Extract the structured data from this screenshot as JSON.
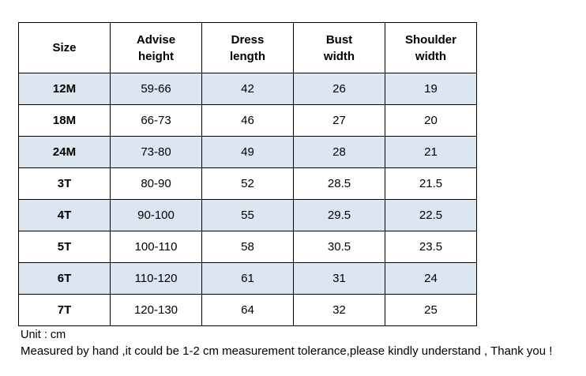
{
  "table": {
    "headers": [
      [
        "Size"
      ],
      [
        "Advise",
        "height"
      ],
      [
        "Dress",
        "length"
      ],
      [
        "Bust",
        "width"
      ],
      [
        "Shoulder",
        "width"
      ]
    ],
    "rows": [
      [
        "12M",
        "59-66",
        "42",
        "26",
        "19"
      ],
      [
        "18M",
        "66-73",
        "46",
        "27",
        "20"
      ],
      [
        "24M",
        "73-80",
        "49",
        "28",
        "21"
      ],
      [
        "3T",
        "80-90",
        "52",
        "28.5",
        "21.5"
      ],
      [
        "4T",
        "90-100",
        "55",
        "29.5",
        "22.5"
      ],
      [
        "5T",
        "100-110",
        "58",
        "30.5",
        "23.5"
      ],
      [
        "6T",
        "110-120",
        "61",
        "31",
        "24"
      ],
      [
        "7T",
        "120-130",
        "64",
        "32",
        "25"
      ]
    ],
    "shaded_row_color": "#dce6f1",
    "shaded_rows": [
      0,
      2,
      4,
      6
    ]
  },
  "notes": {
    "unit": "Unit : cm",
    "measurement": "Measured by hand ,it could be 1-2 cm measurement tolerance,please kindly understand , Thank you !"
  }
}
